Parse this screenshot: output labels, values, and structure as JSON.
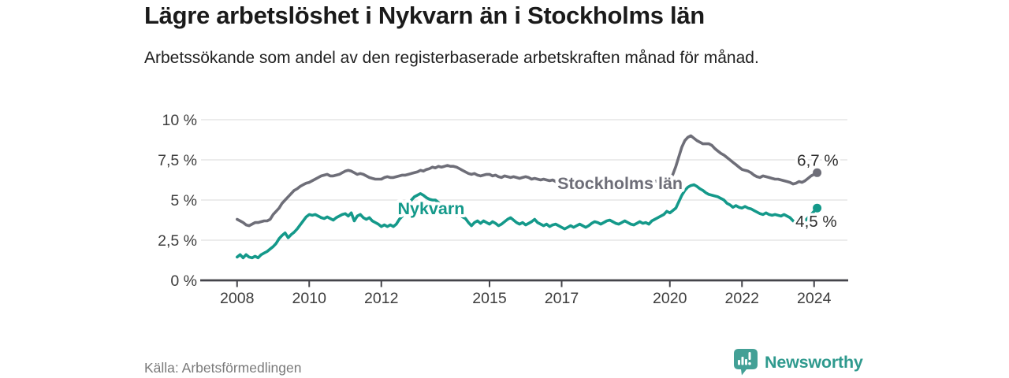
{
  "chart_data": {
    "type": "line",
    "title": "Lägre arbetslöshet i Nykvarn än i Stockholms län",
    "subtitle": "Arbetssökande som andel av den registerbaserade arbetskraften månad för månad.",
    "source": "Källa: Arbetsförmedlingen",
    "unit": "%",
    "grid": "horizontal",
    "legend_position": "inline-labels",
    "x_axis": {
      "range": [
        2007,
        2024.93
      ],
      "ticks": [
        {
          "value": 2008,
          "label": "2008"
        },
        {
          "value": 2010,
          "label": "2010"
        },
        {
          "value": 2012,
          "label": "2012"
        },
        {
          "value": 2015,
          "label": "2015"
        },
        {
          "value": 2017,
          "label": "2017"
        },
        {
          "value": 2020,
          "label": "2020"
        },
        {
          "value": 2022,
          "label": "2022"
        },
        {
          "value": 2024,
          "label": "2024"
        }
      ]
    },
    "y_axis": {
      "range": [
        0,
        10
      ],
      "ticks": [
        {
          "value": 0,
          "label": "0 %"
        },
        {
          "value": 2.5,
          "label": "2,5 %"
        },
        {
          "value": 5,
          "label": "5 %"
        },
        {
          "value": 7.5,
          "label": "7,5 %"
        },
        {
          "value": 10,
          "label": "10 %"
        }
      ]
    },
    "series": [
      {
        "id": "stockholms-lan",
        "name": "Stockholms län",
        "color": "#6e6e78",
        "end_label": "6,7 %",
        "end_value": 6.7,
        "label_pos": [
          2018.62,
          5.69
        ],
        "start_year": 2008,
        "interval_months": 1,
        "values": [
          3.8,
          3.7,
          3.6,
          3.45,
          3.4,
          3.5,
          3.6,
          3.6,
          3.65,
          3.7,
          3.7,
          3.8,
          4.1,
          4.3,
          4.5,
          4.8,
          5.0,
          5.2,
          5.4,
          5.6,
          5.7,
          5.85,
          5.95,
          6.05,
          6.1,
          6.2,
          6.3,
          6.4,
          6.5,
          6.55,
          6.6,
          6.5,
          6.5,
          6.55,
          6.6,
          6.7,
          6.8,
          6.85,
          6.8,
          6.7,
          6.6,
          6.65,
          6.6,
          6.5,
          6.4,
          6.35,
          6.3,
          6.3,
          6.3,
          6.4,
          6.45,
          6.4,
          6.4,
          6.45,
          6.5,
          6.55,
          6.55,
          6.6,
          6.65,
          6.7,
          6.75,
          6.85,
          6.8,
          6.9,
          6.95,
          7.05,
          7.0,
          7.1,
          7.05,
          7.1,
          7.15,
          7.1,
          7.1,
          7.05,
          6.95,
          6.85,
          6.75,
          6.65,
          6.6,
          6.65,
          6.55,
          6.5,
          6.55,
          6.6,
          6.6,
          6.5,
          6.55,
          6.45,
          6.4,
          6.5,
          6.45,
          6.4,
          6.45,
          6.4,
          6.35,
          6.4,
          6.45,
          6.4,
          6.3,
          6.35,
          6.3,
          6.25,
          6.3,
          6.25,
          6.2,
          6.25,
          6.15,
          6.1,
          6.1,
          6.05,
          6.1,
          6.0,
          6.05,
          5.95,
          6.0,
          5.95,
          5.9,
          5.95,
          5.9,
          5.95,
          5.9,
          5.95,
          5.85,
          5.9,
          5.95,
          5.9,
          5.95,
          6.0,
          5.95,
          6.0,
          6.0,
          6.05,
          6.0,
          6.05,
          6.1,
          6.05,
          6.1,
          6.15,
          6.1,
          6.15,
          6.2,
          6.15,
          6.2,
          6.25,
          6.3,
          6.6,
          7.1,
          7.7,
          8.3,
          8.7,
          8.9,
          9.0,
          8.85,
          8.7,
          8.6,
          8.5,
          8.5,
          8.5,
          8.4,
          8.2,
          8.05,
          7.9,
          7.8,
          7.65,
          7.5,
          7.35,
          7.2,
          7.05,
          6.9,
          6.85,
          6.8,
          6.7,
          6.55,
          6.45,
          6.4,
          6.5,
          6.45,
          6.4,
          6.35,
          6.3,
          6.3,
          6.25,
          6.2,
          6.15,
          6.1,
          6.0,
          6.05,
          6.15,
          6.1,
          6.2,
          6.35,
          6.5,
          6.6,
          6.7
        ]
      },
      {
        "id": "nykvarn",
        "name": "Nykvarn",
        "color": "#14998a",
        "end_label": "4,5 %",
        "end_value": 4.5,
        "label_pos": [
          2013.38,
          4.12
        ],
        "start_year": 2008,
        "interval_months": 1,
        "values": [
          1.45,
          1.6,
          1.4,
          1.6,
          1.45,
          1.4,
          1.5,
          1.4,
          1.6,
          1.7,
          1.8,
          1.95,
          2.1,
          2.3,
          2.6,
          2.8,
          2.95,
          2.65,
          2.85,
          3.0,
          3.2,
          3.45,
          3.7,
          3.95,
          4.1,
          4.05,
          4.1,
          4.0,
          3.9,
          3.85,
          3.95,
          3.85,
          3.75,
          3.9,
          4.0,
          4.1,
          4.15,
          4.0,
          4.2,
          3.7,
          4.0,
          4.1,
          3.9,
          3.8,
          3.9,
          3.7,
          3.6,
          3.5,
          3.35,
          3.45,
          3.35,
          3.45,
          3.35,
          3.5,
          3.8,
          4.0,
          4.3,
          4.7,
          5.0,
          5.2,
          5.3,
          5.4,
          5.3,
          5.15,
          5.05,
          5.0,
          5.0,
          4.85,
          4.65,
          4.5,
          4.35,
          4.2,
          4.1,
          4.0,
          4.1,
          3.95,
          3.85,
          3.6,
          3.4,
          3.6,
          3.7,
          3.55,
          3.7,
          3.6,
          3.5,
          3.65,
          3.55,
          3.4,
          3.5,
          3.65,
          3.8,
          3.9,
          3.75,
          3.6,
          3.5,
          3.6,
          3.45,
          3.55,
          3.65,
          3.8,
          3.6,
          3.5,
          3.4,
          3.5,
          3.35,
          3.45,
          3.5,
          3.4,
          3.3,
          3.2,
          3.3,
          3.4,
          3.3,
          3.4,
          3.5,
          3.4,
          3.3,
          3.4,
          3.55,
          3.65,
          3.6,
          3.5,
          3.6,
          3.7,
          3.75,
          3.65,
          3.55,
          3.5,
          3.6,
          3.7,
          3.6,
          3.5,
          3.45,
          3.55,
          3.65,
          3.55,
          3.6,
          3.5,
          3.7,
          3.8,
          3.9,
          4.0,
          4.1,
          4.3,
          4.2,
          4.35,
          4.5,
          4.9,
          5.3,
          5.6,
          5.8,
          5.9,
          5.95,
          5.85,
          5.7,
          5.6,
          5.45,
          5.35,
          5.3,
          5.25,
          5.2,
          5.1,
          5.0,
          4.8,
          4.7,
          4.55,
          4.65,
          4.55,
          4.5,
          4.6,
          4.5,
          4.45,
          4.35,
          4.25,
          4.15,
          4.1,
          4.2,
          4.1,
          4.05,
          4.1,
          4.05,
          4.0,
          4.1,
          4.0,
          3.9,
          3.7,
          3.6,
          3.7,
          3.6,
          3.7,
          3.9,
          4.1,
          4.3,
          4.5
        ]
      }
    ]
  },
  "footer": {
    "brand": "Newsworthy"
  },
  "colors": {
    "background": "#ffffff",
    "line_gray": "#6e6e78",
    "line_teal": "#14998a",
    "logo_teal": "#43a096",
    "wordmark_teal": "#2f9a8e",
    "grid": "#dadada",
    "axis": "#44444a",
    "title_text": "#1a1a1a",
    "muted_text": "#7a7a7a"
  }
}
